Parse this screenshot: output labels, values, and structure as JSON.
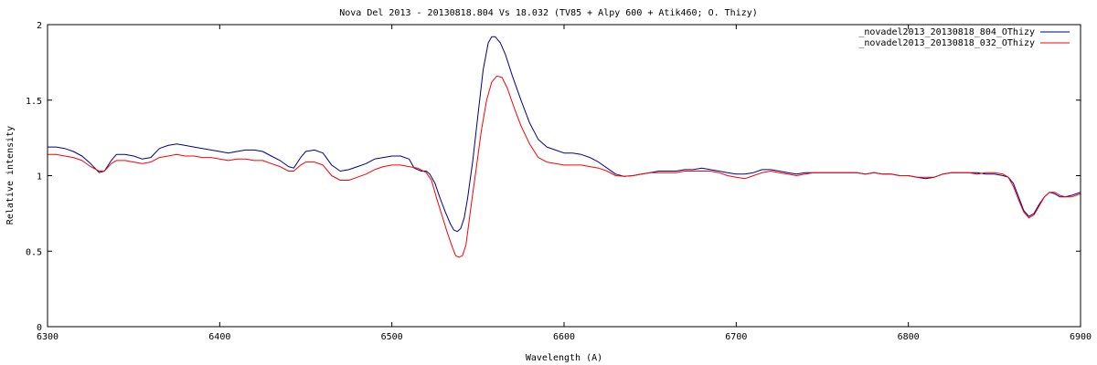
{
  "chart_data": {
    "type": "line",
    "title": "Nova Del 2013 - 20130818.804 Vs 18.032 (TV85 + Alpy 600 + Atik460; O. Thizy)",
    "xlabel": "Wavelength (A)",
    "ylabel": "Relative intensity",
    "xlim": [
      6300,
      6900
    ],
    "ylim": [
      0,
      2
    ],
    "xticks": [
      6300,
      6400,
      6500,
      6600,
      6700,
      6800,
      6900
    ],
    "yticks": [
      0,
      0.5,
      1,
      1.5,
      2
    ],
    "xtick_labels": [
      "6300",
      "6400",
      "6500",
      "6600",
      "6700",
      "6800",
      "6900"
    ],
    "ytick_labels": [
      "0",
      "0.5",
      "1",
      "1.5",
      "2"
    ],
    "grid": false,
    "legend_position": "top-right",
    "series": [
      {
        "name": "_novadel2013_20130818_804_OThizy",
        "color": "#00008b",
        "points": [
          [
            6300,
            1.19
          ],
          [
            6305,
            1.19
          ],
          [
            6310,
            1.18
          ],
          [
            6315,
            1.16
          ],
          [
            6320,
            1.13
          ],
          [
            6325,
            1.08
          ],
          [
            6330,
            1.02
          ],
          [
            6333,
            1.03
          ],
          [
            6337,
            1.1
          ],
          [
            6340,
            1.14
          ],
          [
            6345,
            1.14
          ],
          [
            6350,
            1.13
          ],
          [
            6355,
            1.11
          ],
          [
            6360,
            1.12
          ],
          [
            6365,
            1.18
          ],
          [
            6370,
            1.2
          ],
          [
            6375,
            1.21
          ],
          [
            6380,
            1.2
          ],
          [
            6385,
            1.19
          ],
          [
            6390,
            1.18
          ],
          [
            6395,
            1.17
          ],
          [
            6400,
            1.16
          ],
          [
            6405,
            1.15
          ],
          [
            6410,
            1.16
          ],
          [
            6415,
            1.17
          ],
          [
            6420,
            1.17
          ],
          [
            6425,
            1.16
          ],
          [
            6430,
            1.13
          ],
          [
            6435,
            1.1
          ],
          [
            6440,
            1.06
          ],
          [
            6443,
            1.05
          ],
          [
            6447,
            1.12
          ],
          [
            6450,
            1.16
          ],
          [
            6455,
            1.17
          ],
          [
            6460,
            1.15
          ],
          [
            6465,
            1.07
          ],
          [
            6470,
            1.03
          ],
          [
            6475,
            1.04
          ],
          [
            6480,
            1.06
          ],
          [
            6485,
            1.08
          ],
          [
            6490,
            1.11
          ],
          [
            6495,
            1.12
          ],
          [
            6500,
            1.13
          ],
          [
            6505,
            1.13
          ],
          [
            6510,
            1.11
          ],
          [
            6513,
            1.05
          ],
          [
            6517,
            1.03
          ],
          [
            6520,
            1.03
          ],
          [
            6522,
            1.01
          ],
          [
            6525,
            0.95
          ],
          [
            6528,
            0.85
          ],
          [
            6531,
            0.76
          ],
          [
            6534,
            0.68
          ],
          [
            6536,
            0.64
          ],
          [
            6538,
            0.63
          ],
          [
            6540,
            0.65
          ],
          [
            6542,
            0.72
          ],
          [
            6544,
            0.85
          ],
          [
            6547,
            1.1
          ],
          [
            6550,
            1.4
          ],
          [
            6553,
            1.7
          ],
          [
            6556,
            1.88
          ],
          [
            6558,
            1.92
          ],
          [
            6560,
            1.92
          ],
          [
            6563,
            1.88
          ],
          [
            6566,
            1.8
          ],
          [
            6570,
            1.66
          ],
          [
            6575,
            1.5
          ],
          [
            6580,
            1.35
          ],
          [
            6585,
            1.24
          ],
          [
            6590,
            1.19
          ],
          [
            6595,
            1.17
          ],
          [
            6600,
            1.15
          ],
          [
            6605,
            1.15
          ],
          [
            6610,
            1.14
          ],
          [
            6615,
            1.12
          ],
          [
            6620,
            1.09
          ],
          [
            6625,
            1.05
          ],
          [
            6630,
            1.01
          ],
          [
            6635,
            0.995
          ],
          [
            6640,
            1.0
          ],
          [
            6645,
            1.01
          ],
          [
            6650,
            1.02
          ],
          [
            6655,
            1.03
          ],
          [
            6660,
            1.03
          ],
          [
            6665,
            1.03
          ],
          [
            6670,
            1.04
          ],
          [
            6675,
            1.04
          ],
          [
            6680,
            1.05
          ],
          [
            6685,
            1.04
          ],
          [
            6690,
            1.03
          ],
          [
            6695,
            1.02
          ],
          [
            6700,
            1.01
          ],
          [
            6705,
            1.01
          ],
          [
            6710,
            1.02
          ],
          [
            6715,
            1.04
          ],
          [
            6720,
            1.04
          ],
          [
            6725,
            1.03
          ],
          [
            6730,
            1.02
          ],
          [
            6735,
            1.01
          ],
          [
            6740,
            1.02
          ],
          [
            6745,
            1.02
          ],
          [
            6750,
            1.02
          ],
          [
            6755,
            1.02
          ],
          [
            6760,
            1.02
          ],
          [
            6765,
            1.02
          ],
          [
            6770,
            1.02
          ],
          [
            6775,
            1.01
          ],
          [
            6780,
            1.02
          ],
          [
            6785,
            1.01
          ],
          [
            6790,
            1.01
          ],
          [
            6795,
            1.0
          ],
          [
            6800,
            1.0
          ],
          [
            6805,
            0.99
          ],
          [
            6810,
            0.98
          ],
          [
            6815,
            0.99
          ],
          [
            6820,
            1.01
          ],
          [
            6825,
            1.02
          ],
          [
            6830,
            1.02
          ],
          [
            6835,
            1.02
          ],
          [
            6840,
            1.02
          ],
          [
            6845,
            1.01
          ],
          [
            6850,
            1.01
          ],
          [
            6855,
            1.0
          ],
          [
            6858,
            0.99
          ],
          [
            6861,
            0.95
          ],
          [
            6864,
            0.86
          ],
          [
            6867,
            0.77
          ],
          [
            6870,
            0.73
          ],
          [
            6873,
            0.75
          ],
          [
            6876,
            0.81
          ],
          [
            6879,
            0.86
          ],
          [
            6882,
            0.89
          ],
          [
            6885,
            0.88
          ],
          [
            6888,
            0.86
          ],
          [
            6891,
            0.86
          ],
          [
            6895,
            0.87
          ],
          [
            6900,
            0.89
          ]
        ]
      },
      {
        "name": "_novadel2013_20130818_032_OThizy",
        "color": "#ff0000",
        "points": [
          [
            6300,
            1.14
          ],
          [
            6305,
            1.14
          ],
          [
            6310,
            1.13
          ],
          [
            6315,
            1.12
          ],
          [
            6320,
            1.1
          ],
          [
            6325,
            1.06
          ],
          [
            6330,
            1.03
          ],
          [
            6333,
            1.03
          ],
          [
            6337,
            1.08
          ],
          [
            6340,
            1.1
          ],
          [
            6345,
            1.1
          ],
          [
            6350,
            1.09
          ],
          [
            6355,
            1.08
          ],
          [
            6360,
            1.09
          ],
          [
            6365,
            1.12
          ],
          [
            6370,
            1.13
          ],
          [
            6375,
            1.14
          ],
          [
            6380,
            1.13
          ],
          [
            6385,
            1.13
          ],
          [
            6390,
            1.12
          ],
          [
            6395,
            1.12
          ],
          [
            6400,
            1.11
          ],
          [
            6405,
            1.1
          ],
          [
            6410,
            1.11
          ],
          [
            6415,
            1.11
          ],
          [
            6420,
            1.1
          ],
          [
            6425,
            1.1
          ],
          [
            6430,
            1.08
          ],
          [
            6435,
            1.06
          ],
          [
            6440,
            1.03
          ],
          [
            6443,
            1.03
          ],
          [
            6447,
            1.07
          ],
          [
            6450,
            1.09
          ],
          [
            6455,
            1.09
          ],
          [
            6460,
            1.07
          ],
          [
            6465,
            1.0
          ],
          [
            6470,
            0.97
          ],
          [
            6475,
            0.97
          ],
          [
            6480,
            0.99
          ],
          [
            6485,
            1.01
          ],
          [
            6490,
            1.04
          ],
          [
            6495,
            1.06
          ],
          [
            6500,
            1.07
          ],
          [
            6505,
            1.07
          ],
          [
            6510,
            1.06
          ],
          [
            6515,
            1.05
          ],
          [
            6520,
            1.02
          ],
          [
            6523,
            0.97
          ],
          [
            6526,
            0.85
          ],
          [
            6529,
            0.74
          ],
          [
            6532,
            0.63
          ],
          [
            6535,
            0.53
          ],
          [
            6537,
            0.47
          ],
          [
            6539,
            0.46
          ],
          [
            6541,
            0.47
          ],
          [
            6543,
            0.54
          ],
          [
            6546,
            0.8
          ],
          [
            6549,
            1.05
          ],
          [
            6552,
            1.3
          ],
          [
            6555,
            1.5
          ],
          [
            6558,
            1.62
          ],
          [
            6561,
            1.66
          ],
          [
            6564,
            1.65
          ],
          [
            6567,
            1.58
          ],
          [
            6571,
            1.45
          ],
          [
            6575,
            1.33
          ],
          [
            6580,
            1.21
          ],
          [
            6585,
            1.12
          ],
          [
            6590,
            1.09
          ],
          [
            6595,
            1.08
          ],
          [
            6600,
            1.07
          ],
          [
            6605,
            1.07
          ],
          [
            6610,
            1.07
          ],
          [
            6615,
            1.06
          ],
          [
            6620,
            1.05
          ],
          [
            6625,
            1.03
          ],
          [
            6630,
            1.0
          ],
          [
            6635,
            0.995
          ],
          [
            6640,
            1.0
          ],
          [
            6645,
            1.01
          ],
          [
            6650,
            1.02
          ],
          [
            6655,
            1.02
          ],
          [
            6660,
            1.02
          ],
          [
            6665,
            1.02
          ],
          [
            6670,
            1.03
          ],
          [
            6675,
            1.03
          ],
          [
            6680,
            1.03
          ],
          [
            6685,
            1.03
          ],
          [
            6690,
            1.02
          ],
          [
            6695,
            1.0
          ],
          [
            6700,
            0.99
          ],
          [
            6705,
            0.98
          ],
          [
            6710,
            1.0
          ],
          [
            6715,
            1.02
          ],
          [
            6720,
            1.03
          ],
          [
            6725,
            1.02
          ],
          [
            6730,
            1.01
          ],
          [
            6735,
            1.0
          ],
          [
            6740,
            1.01
          ],
          [
            6745,
            1.02
          ],
          [
            6750,
            1.02
          ],
          [
            6755,
            1.02
          ],
          [
            6760,
            1.02
          ],
          [
            6765,
            1.02
          ],
          [
            6770,
            1.02
          ],
          [
            6775,
            1.01
          ],
          [
            6780,
            1.02
          ],
          [
            6785,
            1.01
          ],
          [
            6790,
            1.01
          ],
          [
            6795,
            1.0
          ],
          [
            6800,
            1.0
          ],
          [
            6805,
            0.99
          ],
          [
            6810,
            0.99
          ],
          [
            6815,
            0.99
          ],
          [
            6820,
            1.01
          ],
          [
            6825,
            1.02
          ],
          [
            6830,
            1.02
          ],
          [
            6835,
            1.02
          ],
          [
            6840,
            1.01
          ],
          [
            6845,
            1.02
          ],
          [
            6850,
            1.02
          ],
          [
            6855,
            1.01
          ],
          [
            6858,
            0.99
          ],
          [
            6861,
            0.93
          ],
          [
            6864,
            0.84
          ],
          [
            6867,
            0.76
          ],
          [
            6870,
            0.72
          ],
          [
            6873,
            0.74
          ],
          [
            6876,
            0.8
          ],
          [
            6879,
            0.86
          ],
          [
            6882,
            0.89
          ],
          [
            6885,
            0.89
          ],
          [
            6888,
            0.87
          ],
          [
            6891,
            0.86
          ],
          [
            6895,
            0.86
          ],
          [
            6900,
            0.88
          ]
        ]
      }
    ]
  }
}
